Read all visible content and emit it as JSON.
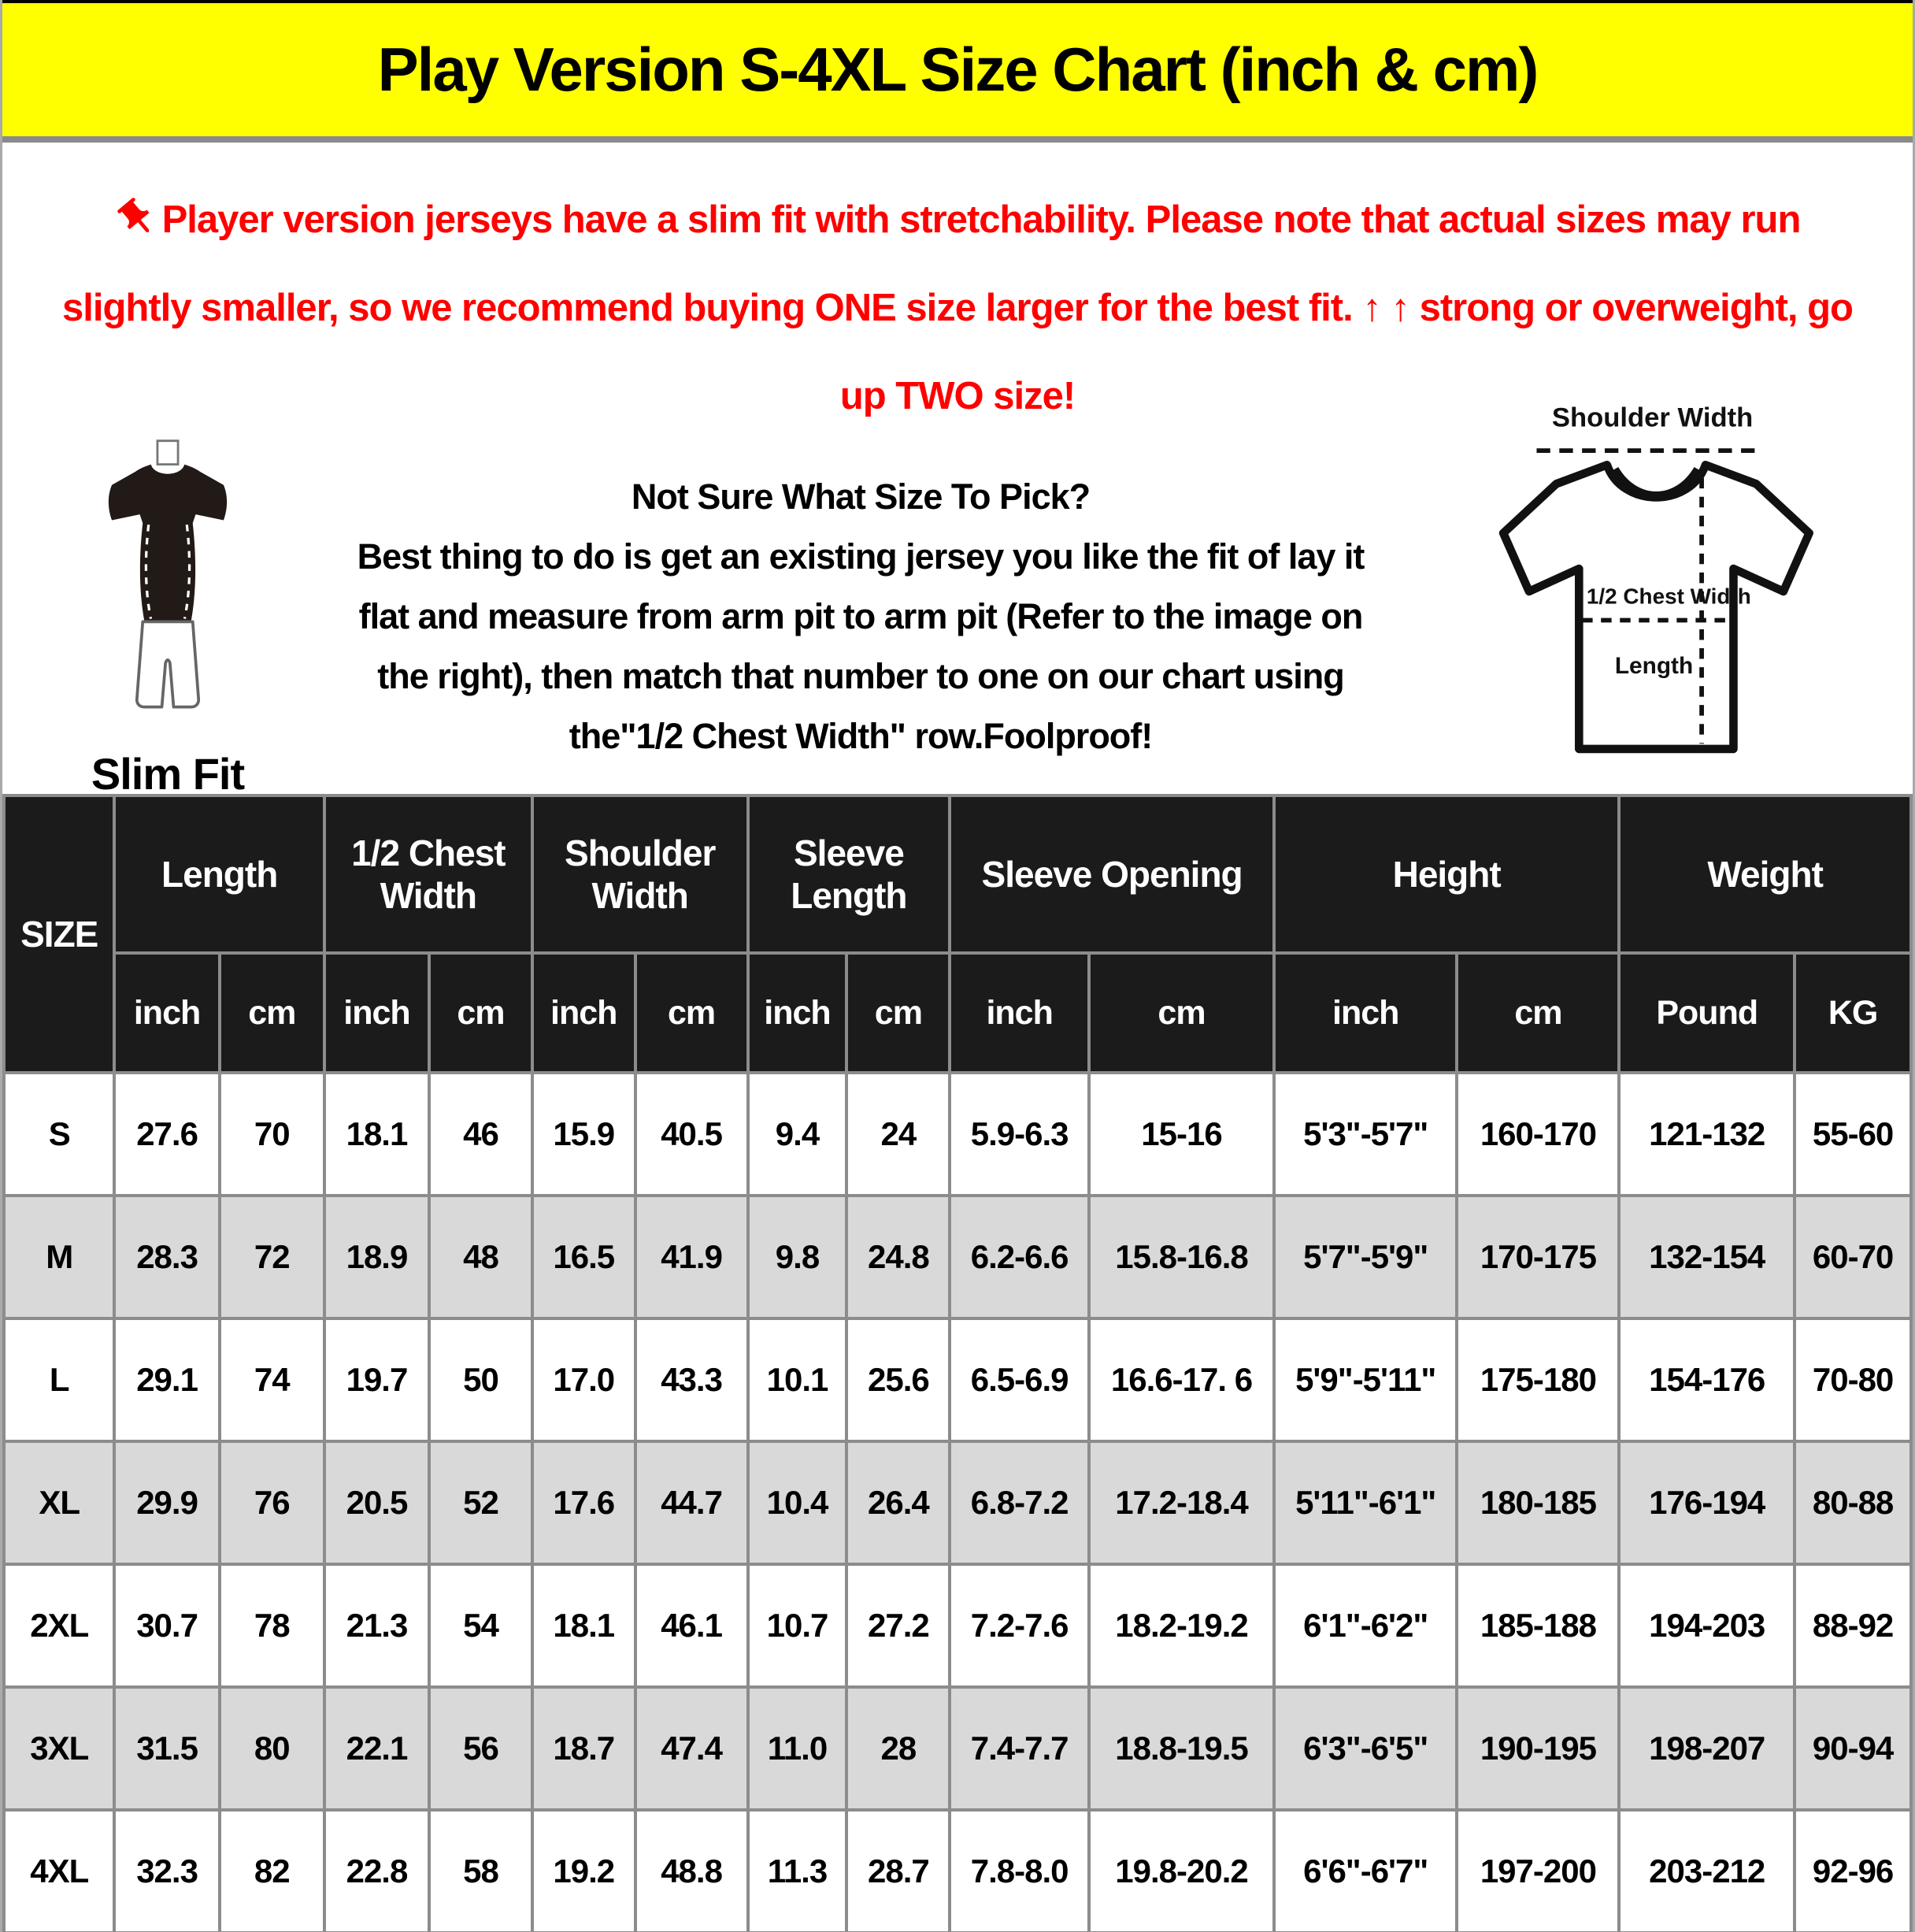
{
  "banner": {
    "title": "Play Version S-4XL Size Chart (inch & cm)"
  },
  "notice": {
    "lines": [
      "Player version jerseys have a slim fit with stretchability. Please note that actual sizes may run",
      "slightly smaller, so we recommend buying ONE size larger for the best fit. ↑ ↑ strong or overweight, go",
      "up TWO size!"
    ]
  },
  "slim_fit": {
    "label": "Slim Fit"
  },
  "guide": {
    "title": "Not Sure What Size To Pick?",
    "lines": [
      "Best thing to do is get an existing jersey you like the fit of lay it",
      "flat and measure from arm pit to arm pit (Refer to the image on",
      "the right), then match that number to one on our chart using",
      "the\"1/2 Chest Width\" row.Foolproof!"
    ]
  },
  "diagram": {
    "shoulder_label": "Shoulder Width",
    "chest_label": "1/2 Chest Width",
    "length_label": "Length"
  },
  "table": {
    "size_header": "SIZE",
    "groups": [
      {
        "label": "Length",
        "sub": [
          "inch",
          "cm"
        ]
      },
      {
        "label": "1/2 Chest Width",
        "sub": [
          "inch",
          "cm"
        ]
      },
      {
        "label": "Shoulder Width",
        "sub": [
          "inch",
          "cm"
        ]
      },
      {
        "label": "Sleeve Length",
        "sub": [
          "inch",
          "cm"
        ]
      },
      {
        "label": "Sleeve Opening",
        "sub": [
          "inch",
          "cm"
        ]
      },
      {
        "label": "Height",
        "sub": [
          "inch",
          "cm"
        ]
      },
      {
        "label": "Weight",
        "sub": [
          "Pound",
          "KG"
        ]
      }
    ],
    "rows": [
      {
        "size": "S",
        "values": [
          "27.6",
          "70",
          "18.1",
          "46",
          "15.9",
          "40.5",
          "9.4",
          "24",
          "5.9-6.3",
          "15-16",
          "5'3\"-5'7\"",
          "160-170",
          "121-132",
          "55-60"
        ]
      },
      {
        "size": "M",
        "values": [
          "28.3",
          "72",
          "18.9",
          "48",
          "16.5",
          "41.9",
          "9.8",
          "24.8",
          "6.2-6.6",
          "15.8-16.8",
          "5'7\"-5'9\"",
          "170-175",
          "132-154",
          "60-70"
        ]
      },
      {
        "size": "L",
        "values": [
          "29.1",
          "74",
          "19.7",
          "50",
          "17.0",
          "43.3",
          "10.1",
          "25.6",
          "6.5-6.9",
          "16.6-17. 6",
          "5'9\"-5'11\"",
          "175-180",
          "154-176",
          "70-80"
        ]
      },
      {
        "size": "XL",
        "values": [
          "29.9",
          "76",
          "20.5",
          "52",
          "17.6",
          "44.7",
          "10.4",
          "26.4",
          "6.8-7.2",
          "17.2-18.4",
          "5'11\"-6'1\"",
          "180-185",
          "176-194",
          "80-88"
        ]
      },
      {
        "size": "2XL",
        "values": [
          "30.7",
          "78",
          "21.3",
          "54",
          "18.1",
          "46.1",
          "10.7",
          "27.2",
          "7.2-7.6",
          "18.2-19.2",
          "6'1\"-6'2\"",
          "185-188",
          "194-203",
          "88-92"
        ]
      },
      {
        "size": "3XL",
        "values": [
          "31.5",
          "80",
          "22.1",
          "56",
          "18.7",
          "47.4",
          "11.0",
          "28",
          "7.4-7.7",
          "18.8-19.5",
          "6'3\"-6'5\"",
          "190-195",
          "198-207",
          "90-94"
        ]
      },
      {
        "size": "4XL",
        "values": [
          "32.3",
          "82",
          "22.8",
          "58",
          "19.2",
          "48.8",
          "11.3",
          "28.7",
          "7.8-8.0",
          "19.8-20.2",
          "6'6\"-6'7\"",
          "197-200",
          "203-212",
          "92-96"
        ]
      }
    ]
  },
  "colors": {
    "banner_bg": "#ffff00",
    "notice_red": "#ff0000",
    "header_bg": "#1b1b1b",
    "row_alt_bg": "#d9d9d9",
    "grid_line": "#8c8c8c"
  }
}
